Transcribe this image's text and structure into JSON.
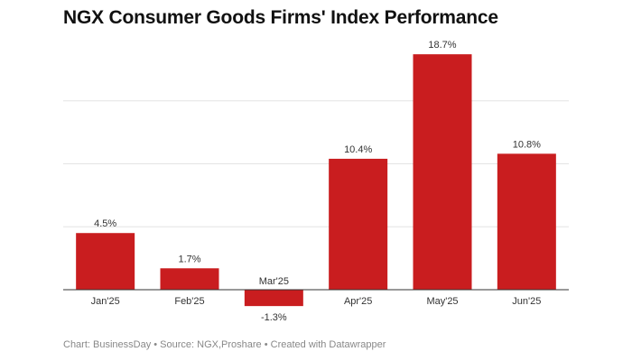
{
  "chart_data": {
    "type": "bar",
    "title": "NGX Consumer Goods Firms' Index Performance",
    "categories": [
      "Jan'25",
      "Feb'25",
      "Mar'25",
      "Apr'25",
      "May'25",
      "Jun'25"
    ],
    "values": [
      4.5,
      1.7,
      -1.3,
      10.4,
      18.7,
      10.8
    ],
    "data_labels": [
      "4.5%",
      "1.7%",
      "-1.3%",
      "10.4%",
      "18.7%",
      "10.8%"
    ],
    "xlabel": "",
    "ylabel": "",
    "ylim": [
      -2,
      20
    ],
    "gridlines": [
      5,
      10,
      15
    ],
    "grid": true,
    "y_tick_labels_shown": false,
    "bar_color": "#c91d1f"
  },
  "footer": "Chart: BusinessDay • Source: NGX,Proshare • Created with Datawrapper"
}
